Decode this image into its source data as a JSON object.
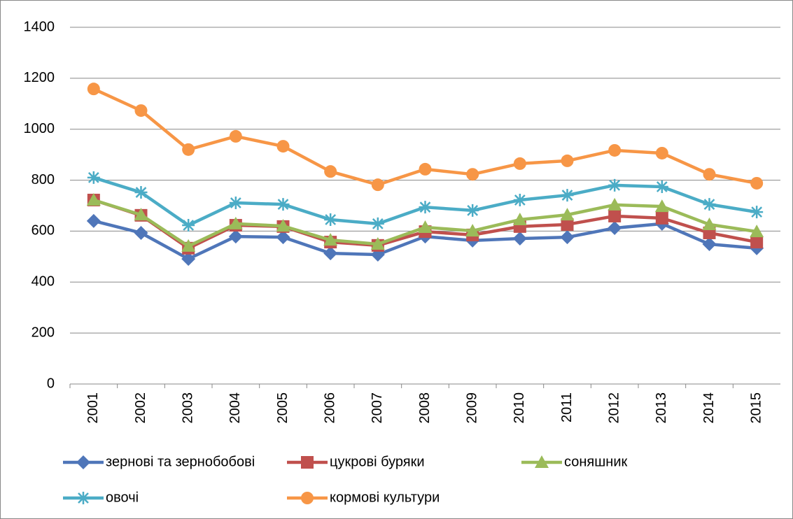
{
  "chart_data": {
    "type": "line",
    "categories": [
      "2001",
      "2002",
      "2003",
      "2004",
      "2005",
      "2006",
      "2007",
      "2008",
      "2009",
      "2010",
      "2011",
      "2012",
      "2013",
      "2014",
      "2015"
    ],
    "series": [
      {
        "name": "зернові та зернобобові",
        "color": "#4f76b9",
        "marker": "diamond",
        "values": [
          640,
          593,
          491,
          579,
          576,
          513,
          508,
          579,
          563,
          571,
          576,
          612,
          629,
          549,
          533
        ]
      },
      {
        "name": "цукрові буряки",
        "color": "#c0504d",
        "marker": "square",
        "values": [
          722,
          662,
          533,
          623,
          618,
          557,
          544,
          598,
          585,
          618,
          626,
          659,
          651,
          593,
          557
        ]
      },
      {
        "name": "соняшник",
        "color": "#9bbb59",
        "marker": "triangle",
        "values": [
          722,
          664,
          541,
          629,
          620,
          565,
          549,
          615,
          601,
          645,
          664,
          703,
          697,
          626,
          598
        ]
      },
      {
        "name": "овочі",
        "color": "#4bacc6",
        "marker": "asterisk",
        "values": [
          810,
          752,
          623,
          711,
          705,
          645,
          629,
          694,
          681,
          722,
          741,
          780,
          774,
          705,
          675
        ]
      },
      {
        "name": "кормові культури",
        "color": "#f79646",
        "marker": "circle",
        "values": [
          1158,
          1073,
          920,
          972,
          933,
          834,
          782,
          843,
          823,
          865,
          876,
          917,
          906,
          823,
          788
        ]
      }
    ],
    "ylim": [
      0,
      1400
    ],
    "yticks": [
      0,
      200,
      400,
      600,
      800,
      1000,
      1200,
      1400
    ],
    "grid": true,
    "legend": "bottom"
  }
}
